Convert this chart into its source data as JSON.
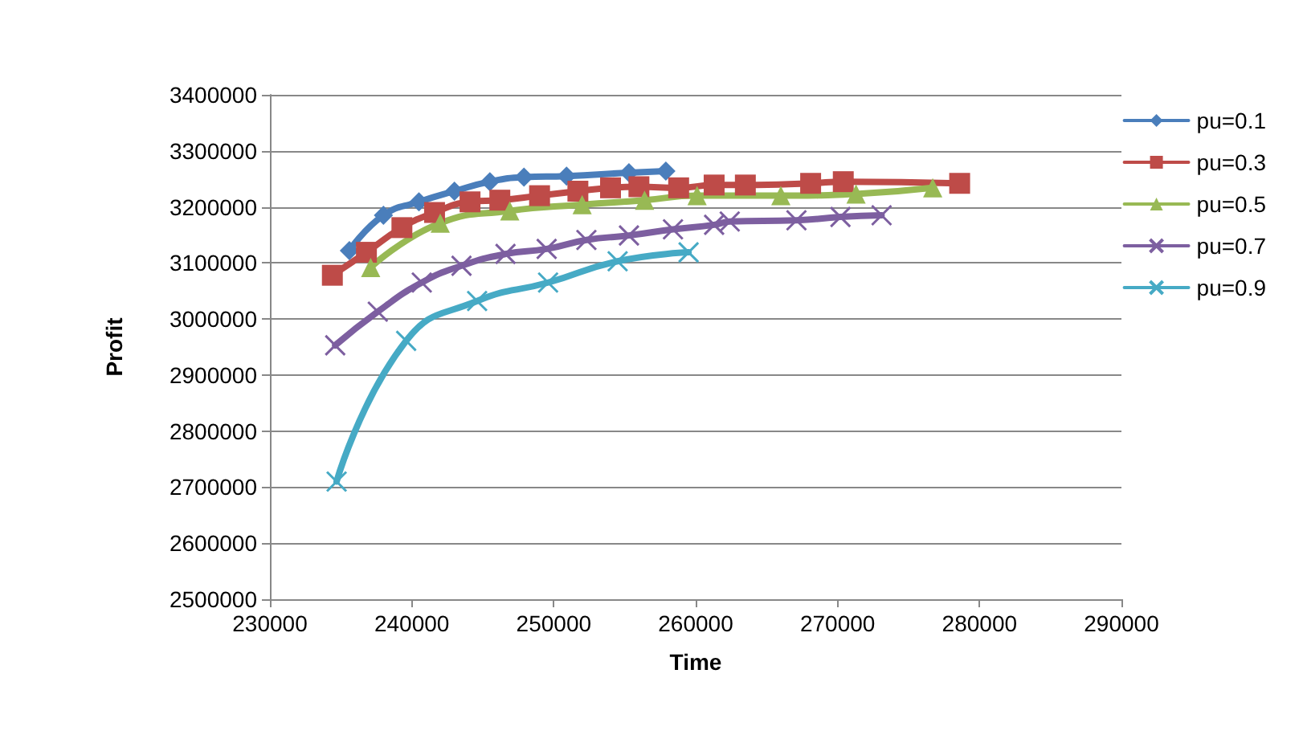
{
  "chart_data": {
    "type": "line",
    "xlabel": "Time",
    "ylabel": "Profit",
    "xlim": [
      230000,
      290000
    ],
    "xticks": [
      230000,
      240000,
      250000,
      260000,
      270000,
      280000,
      290000
    ],
    "ylim": [
      2500000,
      3400000
    ],
    "yticks": [
      2500000,
      2600000,
      2700000,
      2800000,
      2900000,
      3000000,
      3100000,
      3200000,
      3300000,
      3400000
    ],
    "grid": "y",
    "legend": "right",
    "line_style": "solid",
    "series": [
      {
        "name": "pu=0.1",
        "color": "#4a7ebb",
        "marker": "diamond",
        "x": [
          235600,
          238000,
          240500,
          243000,
          245500,
          247900,
          250900,
          255300,
          257900
        ],
        "values": [
          3122000,
          3185000,
          3209000,
          3228000,
          3245000,
          3253000,
          3255000,
          3261000,
          3264000
        ]
      },
      {
        "name": "pu=0.3",
        "color": "#be4b48",
        "marker": "square",
        "x": [
          234400,
          236800,
          239300,
          241600,
          244100,
          246200,
          249000,
          251700,
          254000,
          256000,
          258800,
          261300,
          263500,
          268100,
          270400,
          278600
        ],
        "values": [
          3078000,
          3119000,
          3163000,
          3190000,
          3209000,
          3212000,
          3220000,
          3228000,
          3234000,
          3236000,
          3234000,
          3239000,
          3239000,
          3242000,
          3245000,
          3242000
        ]
      },
      {
        "name": "pu=0.5",
        "color": "#98b954",
        "marker": "triangle",
        "x": [
          237100,
          242000,
          246900,
          252000,
          256400,
          260100,
          266000,
          271300,
          276700
        ],
        "values": [
          3092000,
          3171000,
          3193000,
          3204000,
          3212000,
          3220000,
          3220000,
          3223000,
          3234000
        ]
      },
      {
        "name": "pu=0.7",
        "color": "#7d5fa0",
        "marker": "cross",
        "x": [
          234600,
          237600,
          240700,
          243500,
          246600,
          249500,
          252300,
          255300,
          258400,
          261300,
          262400,
          267100,
          270200,
          273100
        ],
        "values": [
          2953000,
          3013000,
          3065000,
          3095000,
          3116000,
          3125000,
          3141000,
          3149000,
          3160000,
          3168000,
          3174000,
          3176000,
          3182000,
          3185000
        ]
      },
      {
        "name": "pu=0.9",
        "color": "#46aac5",
        "marker": "cross",
        "x": [
          234700,
          239600,
          244600,
          249600,
          254500,
          259500
        ],
        "values": [
          2710000,
          2961000,
          3032000,
          3065000,
          3103000,
          3119000
        ]
      }
    ]
  }
}
